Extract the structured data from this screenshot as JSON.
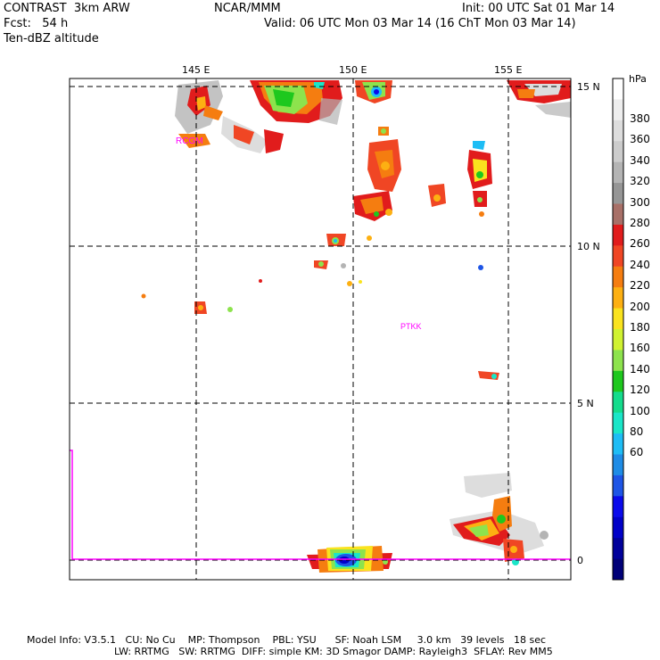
{
  "header": {
    "model": "CONTRAST  3km ARW",
    "center": "NCAR/MMM",
    "init": "Init: 00 UTC Sat 01 Mar 14",
    "fcst": "Fcst:   54 h",
    "valid": "Valid: 06 UTC Mon 03 Mar 14 (16 ChT Mon 03 Mar 14)",
    "field": "Ten-dBZ altitude"
  },
  "map": {
    "lon_labels": [
      "145 E",
      "150 E",
      "155 E"
    ],
    "lat_labels": [
      "15 N",
      "10 N",
      "5 N",
      "0"
    ],
    "stations": [
      "RCGM",
      "PTKK"
    ],
    "boundary_color": "#ff00ff"
  },
  "legend": {
    "unit": "hPa",
    "labels": [
      "380",
      "360",
      "340",
      "320",
      "300",
      "280",
      "260",
      "240",
      "220",
      "200",
      "180",
      "160",
      "140",
      "120",
      "100",
      "80",
      "60"
    ],
    "colors": [
      "#ffffff",
      "#eeeeee",
      "#dddddd",
      "#cccccc",
      "#b4b4b4",
      "#969696",
      "#a87068",
      "#e11c1c",
      "#f04624",
      "#f57d10",
      "#fdb012",
      "#fae31e",
      "#d0f231",
      "#8de34d",
      "#1ec81e",
      "#14dc8c",
      "#1ae6c8",
      "#1ebdf5",
      "#1e8ce6",
      "#1e55e6",
      "#0a0aeb",
      "#0000c8",
      "#00009b",
      "#000078"
    ]
  },
  "footer": {
    "line1": "Model Info: V3.5.1   CU: No Cu    MP: Thompson    PBL: YSU      SF: Noah LSM     3.0 km   39 levels   18 sec",
    "line2": "LW: RRTMG   SW: RRTMG  DIFF: simple KM: 3D Smagor DAMP: Rayleigh3  SFLAY: Rev MM5"
  }
}
